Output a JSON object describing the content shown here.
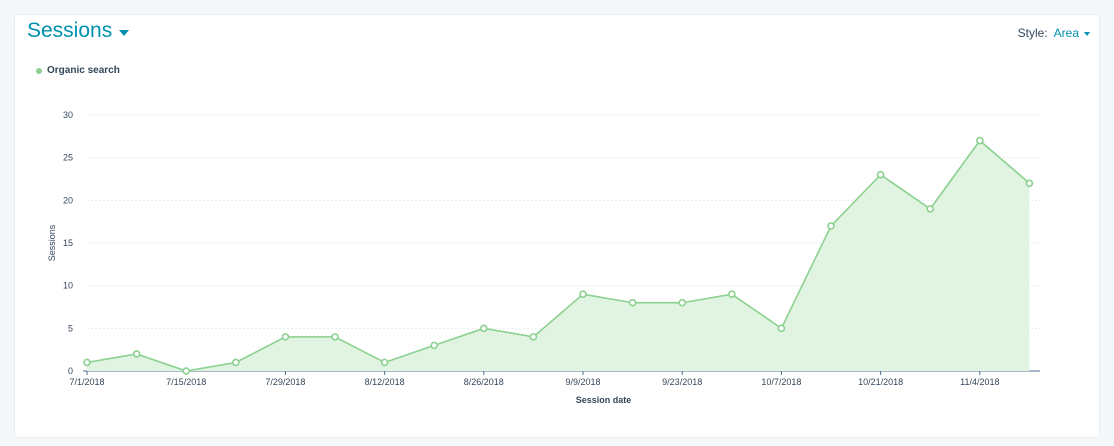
{
  "header": {
    "title": "Sessions",
    "style_label": "Style:",
    "style_value": "Area"
  },
  "colors": {
    "accent": "#0091ae",
    "series_line": "#8bd18f",
    "series_fill": "#e1f4e2"
  },
  "chart_data": {
    "type": "area",
    "xlabel": "Session date",
    "ylabel": "Sessions",
    "ylim": [
      0,
      30
    ],
    "yticks": [
      0,
      5,
      10,
      15,
      20,
      25,
      30
    ],
    "x_ticks": [
      "7/1/2018",
      "7/15/2018",
      "7/29/2018",
      "8/12/2018",
      "8/26/2018",
      "9/9/2018",
      "9/23/2018",
      "10/7/2018",
      "10/21/2018",
      "11/4/2018"
    ],
    "x": [
      "7/1/2018",
      "7/8/2018",
      "7/15/2018",
      "7/22/2018",
      "7/29/2018",
      "8/5/2018",
      "8/12/2018",
      "8/19/2018",
      "8/26/2018",
      "9/2/2018",
      "9/9/2018",
      "9/16/2018",
      "9/23/2018",
      "9/30/2018",
      "10/7/2018",
      "10/14/2018",
      "10/21/2018",
      "10/28/2018",
      "11/4/2018",
      "11/11/2018"
    ],
    "grid": true,
    "legend_position": "top-left",
    "series": [
      {
        "name": "Organic search",
        "values": [
          1,
          2,
          0,
          1,
          4,
          4,
          1,
          3,
          5,
          4,
          9,
          8,
          8,
          9,
          5,
          17,
          23,
          19,
          27,
          22
        ]
      }
    ]
  }
}
